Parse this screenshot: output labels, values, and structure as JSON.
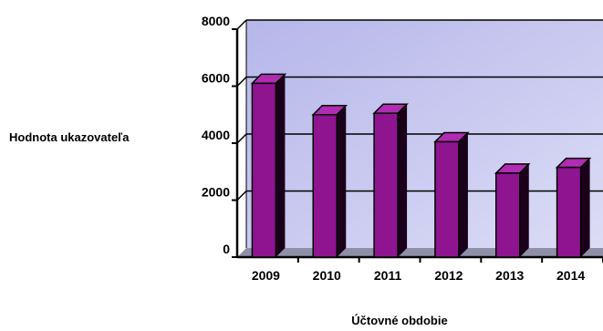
{
  "chart_data": {
    "type": "bar",
    "categories": [
      "2009",
      "2010",
      "2011",
      "2012",
      "2013",
      "2014"
    ],
    "values": [
      6100,
      5000,
      5050,
      4050,
      2950,
      3150
    ],
    "title": "",
    "xlabel": "Účtovné obdobie",
    "ylabel": "Hodnota ukazovateľa",
    "ylim": [
      0,
      8000
    ],
    "yticks": [
      "0",
      "2000",
      "4000",
      "6000",
      "8000"
    ],
    "grid": true,
    "legend": "none",
    "colors": {
      "bar_front": "#8e1490",
      "bar_side": "#1a001a",
      "bar_top": "#b02cb2",
      "wall": "#c8c8f0",
      "floor": "#8f8fa8",
      "grid": "#000000"
    }
  }
}
